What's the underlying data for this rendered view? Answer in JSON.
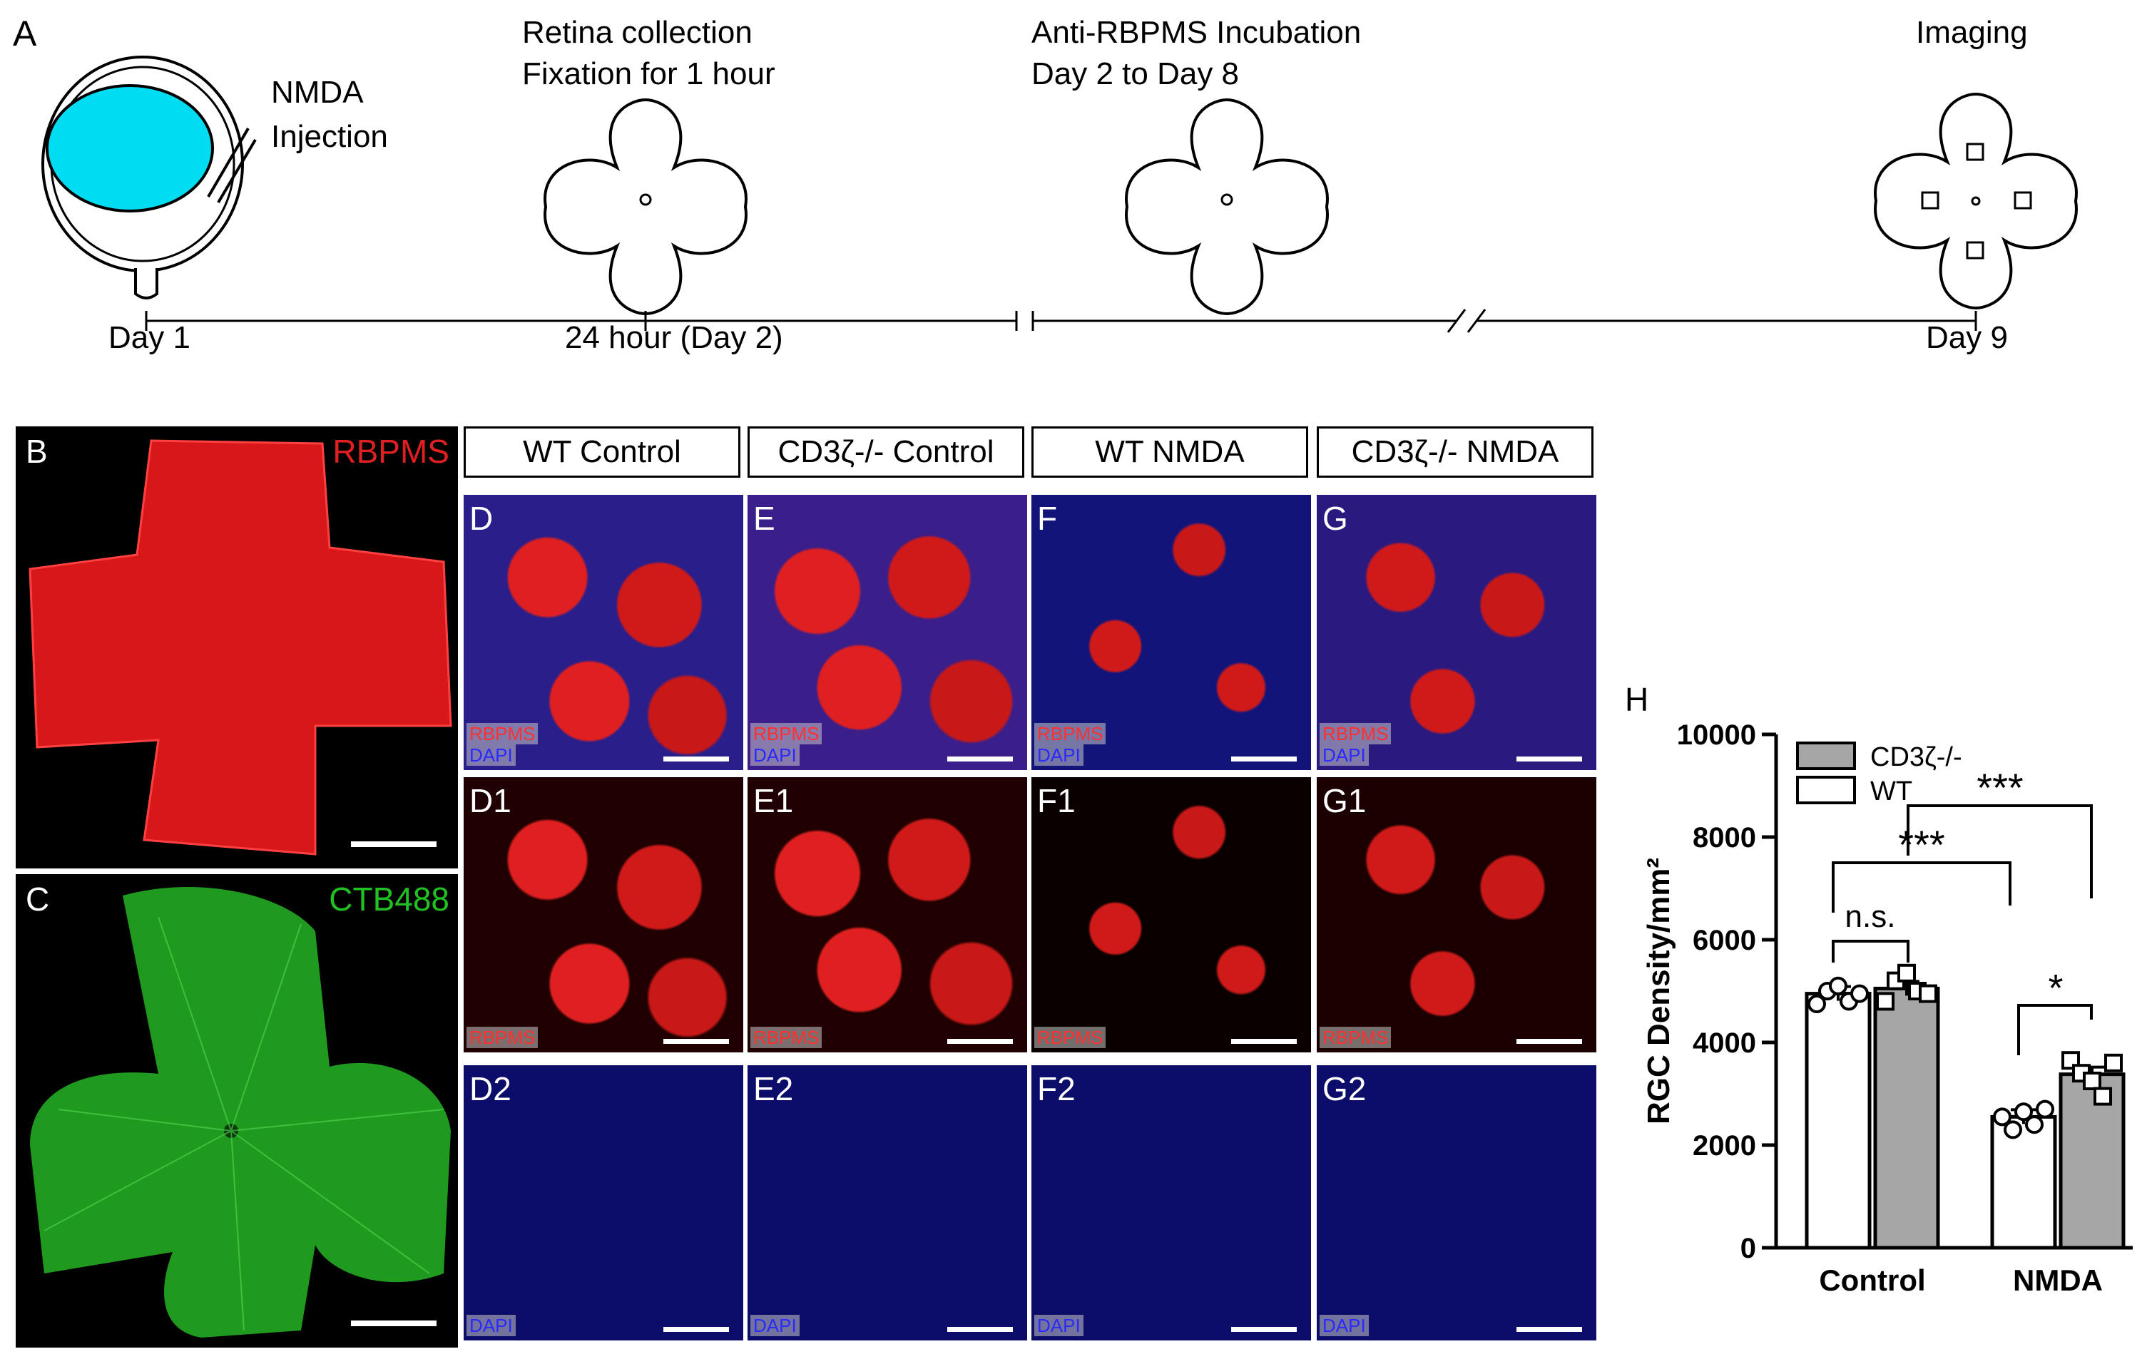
{
  "panel_a": {
    "letter": "A",
    "inject_line1": "NMDA",
    "inject_line2": "Injection",
    "step2_line1": "Retina collection",
    "step2_line2": "Fixation for 1 hour",
    "step3_line1": "Anti-RBPMS Incubation",
    "step3_line2": "Day 2 to Day 8",
    "step4": "Imaging",
    "tick_day1": "Day 1",
    "tick_24h": "24 hour (Day 2)",
    "tick_day9": "Day 9"
  },
  "panel_b": {
    "letter": "B",
    "stain": "RBPMS",
    "color": "#e02020"
  },
  "panel_c": {
    "letter": "C",
    "stain": "CTB488",
    "color": "#22c022"
  },
  "headers": [
    "WT Control",
    "CD3ζ-/- Control",
    "WT NMDA",
    "CD3ζ-/- NMDA"
  ],
  "micrographs": {
    "row1": {
      "letters": [
        "D",
        "E",
        "F",
        "G"
      ],
      "tag_top": "RBPMS",
      "tag_bottom": "DAPI"
    },
    "row2": {
      "letters": [
        "D1",
        "E1",
        "F1",
        "G1"
      ],
      "tag": "RBPMS"
    },
    "row3": {
      "letters": [
        "D2",
        "E2",
        "F2",
        "G2"
      ],
      "tag": "DAPI"
    },
    "colors": {
      "rbpms": "#ff2a2a",
      "dapi": "#2233ff"
    }
  },
  "chart_data": {
    "panel_letter": "H",
    "type": "bar",
    "categories": [
      "Control",
      "NMDA"
    ],
    "series": [
      {
        "name": "WT",
        "values": [
          4950,
          2550
        ],
        "fill": "#ffffff",
        "points": [
          [
            4750,
            5000,
            5100,
            4800,
            4950
          ],
          [
            2550,
            2300,
            2650,
            2400,
            2700
          ]
        ]
      },
      {
        "name": "CD3ζ-/-",
        "values": [
          5050,
          3380
        ],
        "fill": "#a6a6a6",
        "points": [
          [
            4800,
            5200,
            5350,
            5000,
            4950
          ],
          [
            3650,
            3400,
            3250,
            2950,
            3600
          ]
        ]
      }
    ],
    "legend": [
      "CD3ζ-/-",
      "WT"
    ],
    "ylabel": "RGC Density/mm²",
    "ylim": [
      0,
      10000
    ],
    "yticks": [
      "0",
      "2000",
      "4000",
      "6000",
      "8000",
      "10000"
    ],
    "annotations": {
      "ns": "n.s.",
      "star1": "*",
      "star3a": "***",
      "star3b": "***"
    }
  }
}
